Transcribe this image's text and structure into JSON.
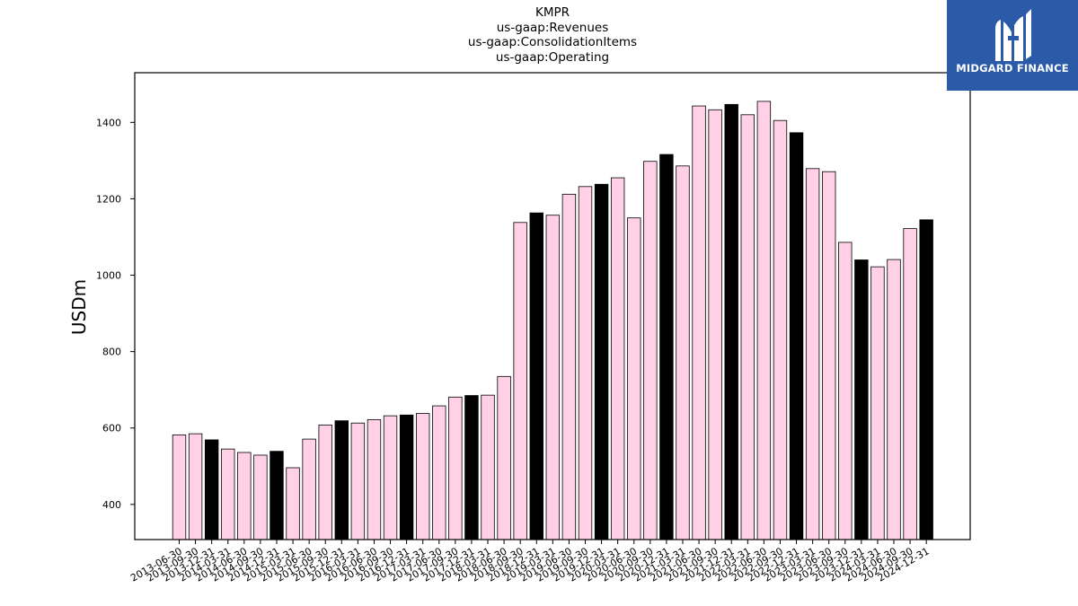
{
  "chart_data": {
    "type": "bar",
    "title_lines": [
      "KMPR",
      "us-gaap:Revenues",
      "us-gaap:ConsolidationItems",
      "us-gaap:Operating"
    ],
    "xlabel": "",
    "ylabel": "USDm",
    "ylim": [
      308,
      1530
    ],
    "yticks": [
      400,
      600,
      800,
      1000,
      1200,
      1400
    ],
    "grid": false,
    "colors": {
      "quarter": "#ffd0e6",
      "year_end": "#000000",
      "edge": "#000000"
    },
    "categories": [
      "2013-06-30",
      "2013-09-30",
      "2013-12-31",
      "2014-03-31",
      "2014-06-30",
      "2014-09-30",
      "2014-12-31",
      "2015-03-31",
      "2015-06-30",
      "2015-09-30",
      "2015-12-31",
      "2016-03-31",
      "2016-06-30",
      "2016-09-30",
      "2016-12-31",
      "2017-03-31",
      "2017-06-30",
      "2017-09-30",
      "2017-12-31",
      "2018-03-31",
      "2018-06-30",
      "2018-09-30",
      "2018-12-31",
      "2019-03-31",
      "2019-06-30",
      "2019-09-30",
      "2019-12-31",
      "2020-03-31",
      "2020-06-30",
      "2020-09-30",
      "2020-12-31",
      "2021-03-31",
      "2021-06-30",
      "2021-09-30",
      "2021-12-31",
      "2022-03-31",
      "2022-06-30",
      "2022-09-30",
      "2022-12-31",
      "2023-03-31",
      "2023-06-30",
      "2023-09-30",
      "2023-12-31",
      "2024-03-31",
      "2024-06-30",
      "2024-09-30",
      "2024-12-31"
    ],
    "values": [
      582,
      585,
      569,
      545,
      536,
      529,
      539,
      496,
      571,
      608,
      619,
      613,
      622,
      632,
      634,
      638,
      658,
      681,
      685,
      686,
      735,
      1138,
      1163,
      1157,
      1212,
      1232,
      1238,
      1255,
      1150,
      1298,
      1316,
      1286,
      1443,
      1433,
      1447,
      1420,
      1455,
      1405,
      1373,
      1279,
      1271,
      1086,
      1040,
      1022,
      1041,
      1122,
      1145
    ]
  },
  "logo": {
    "text": "MIDGARD FINANCE"
  }
}
